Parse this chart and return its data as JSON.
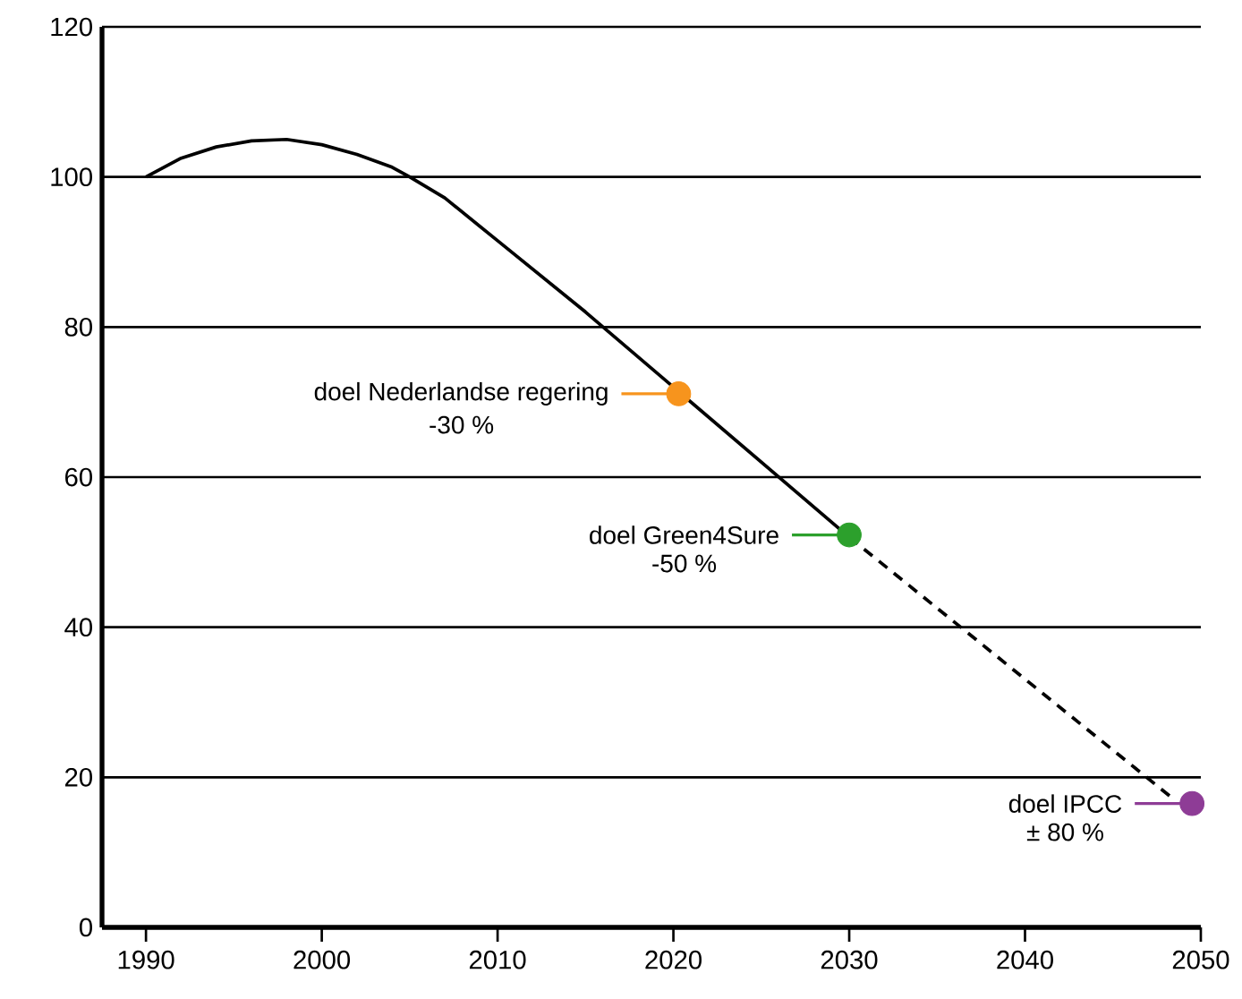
{
  "chart_data": {
    "type": "line",
    "x": [
      1990,
      1992,
      1994,
      1996,
      1998,
      2000,
      2002,
      2004,
      2005,
      2007,
      2010,
      2015,
      2020,
      2025,
      2030
    ],
    "series": [
      {
        "color": "#000000",
        "values": [
          100,
          102.5,
          104,
          104.8,
          105,
          104.3,
          103,
          101.3,
          100,
          97.2,
          91.5,
          82,
          72,
          62,
          52
        ]
      },
      {
        "color": "#000000",
        "line_style": "dashed",
        "x": [
          2030,
          2048.5
        ],
        "values": [
          52,
          17
        ]
      },
      {
        "type": "scatter",
        "color": "#f7941d",
        "x": [
          2020.3
        ],
        "values": [
          71.1
        ]
      },
      {
        "type": "scatter",
        "color": "#2ca02c",
        "x": [
          2030
        ],
        "values": [
          52.3
        ]
      },
      {
        "type": "scatter",
        "color": "#8e3c96",
        "x": [
          2049.5
        ],
        "values": [
          16.5
        ]
      }
    ],
    "annotations": [
      {
        "text": "doel Nederlandse regering",
        "x": 2020.3,
        "y": 71.1
      },
      "-30 %",
      {
        "text": "doel Green4Sure",
        "x": 2030,
        "y": 52.3
      },
      "-50 %",
      {
        "text": "doel IPCC",
        "x": 2049.5,
        "y": 16.5
      },
      "± 80 %"
    ],
    "xlim": [
      1987.5,
      2050
    ],
    "ylim": [
      0,
      120
    ],
    "xticks": [
      1990,
      2000,
      2010,
      2020,
      2030,
      2040,
      2050
    ],
    "yticks": [
      0,
      20,
      40,
      60,
      80,
      100,
      120
    ],
    "grid": "y",
    "line_style": "solid"
  }
}
